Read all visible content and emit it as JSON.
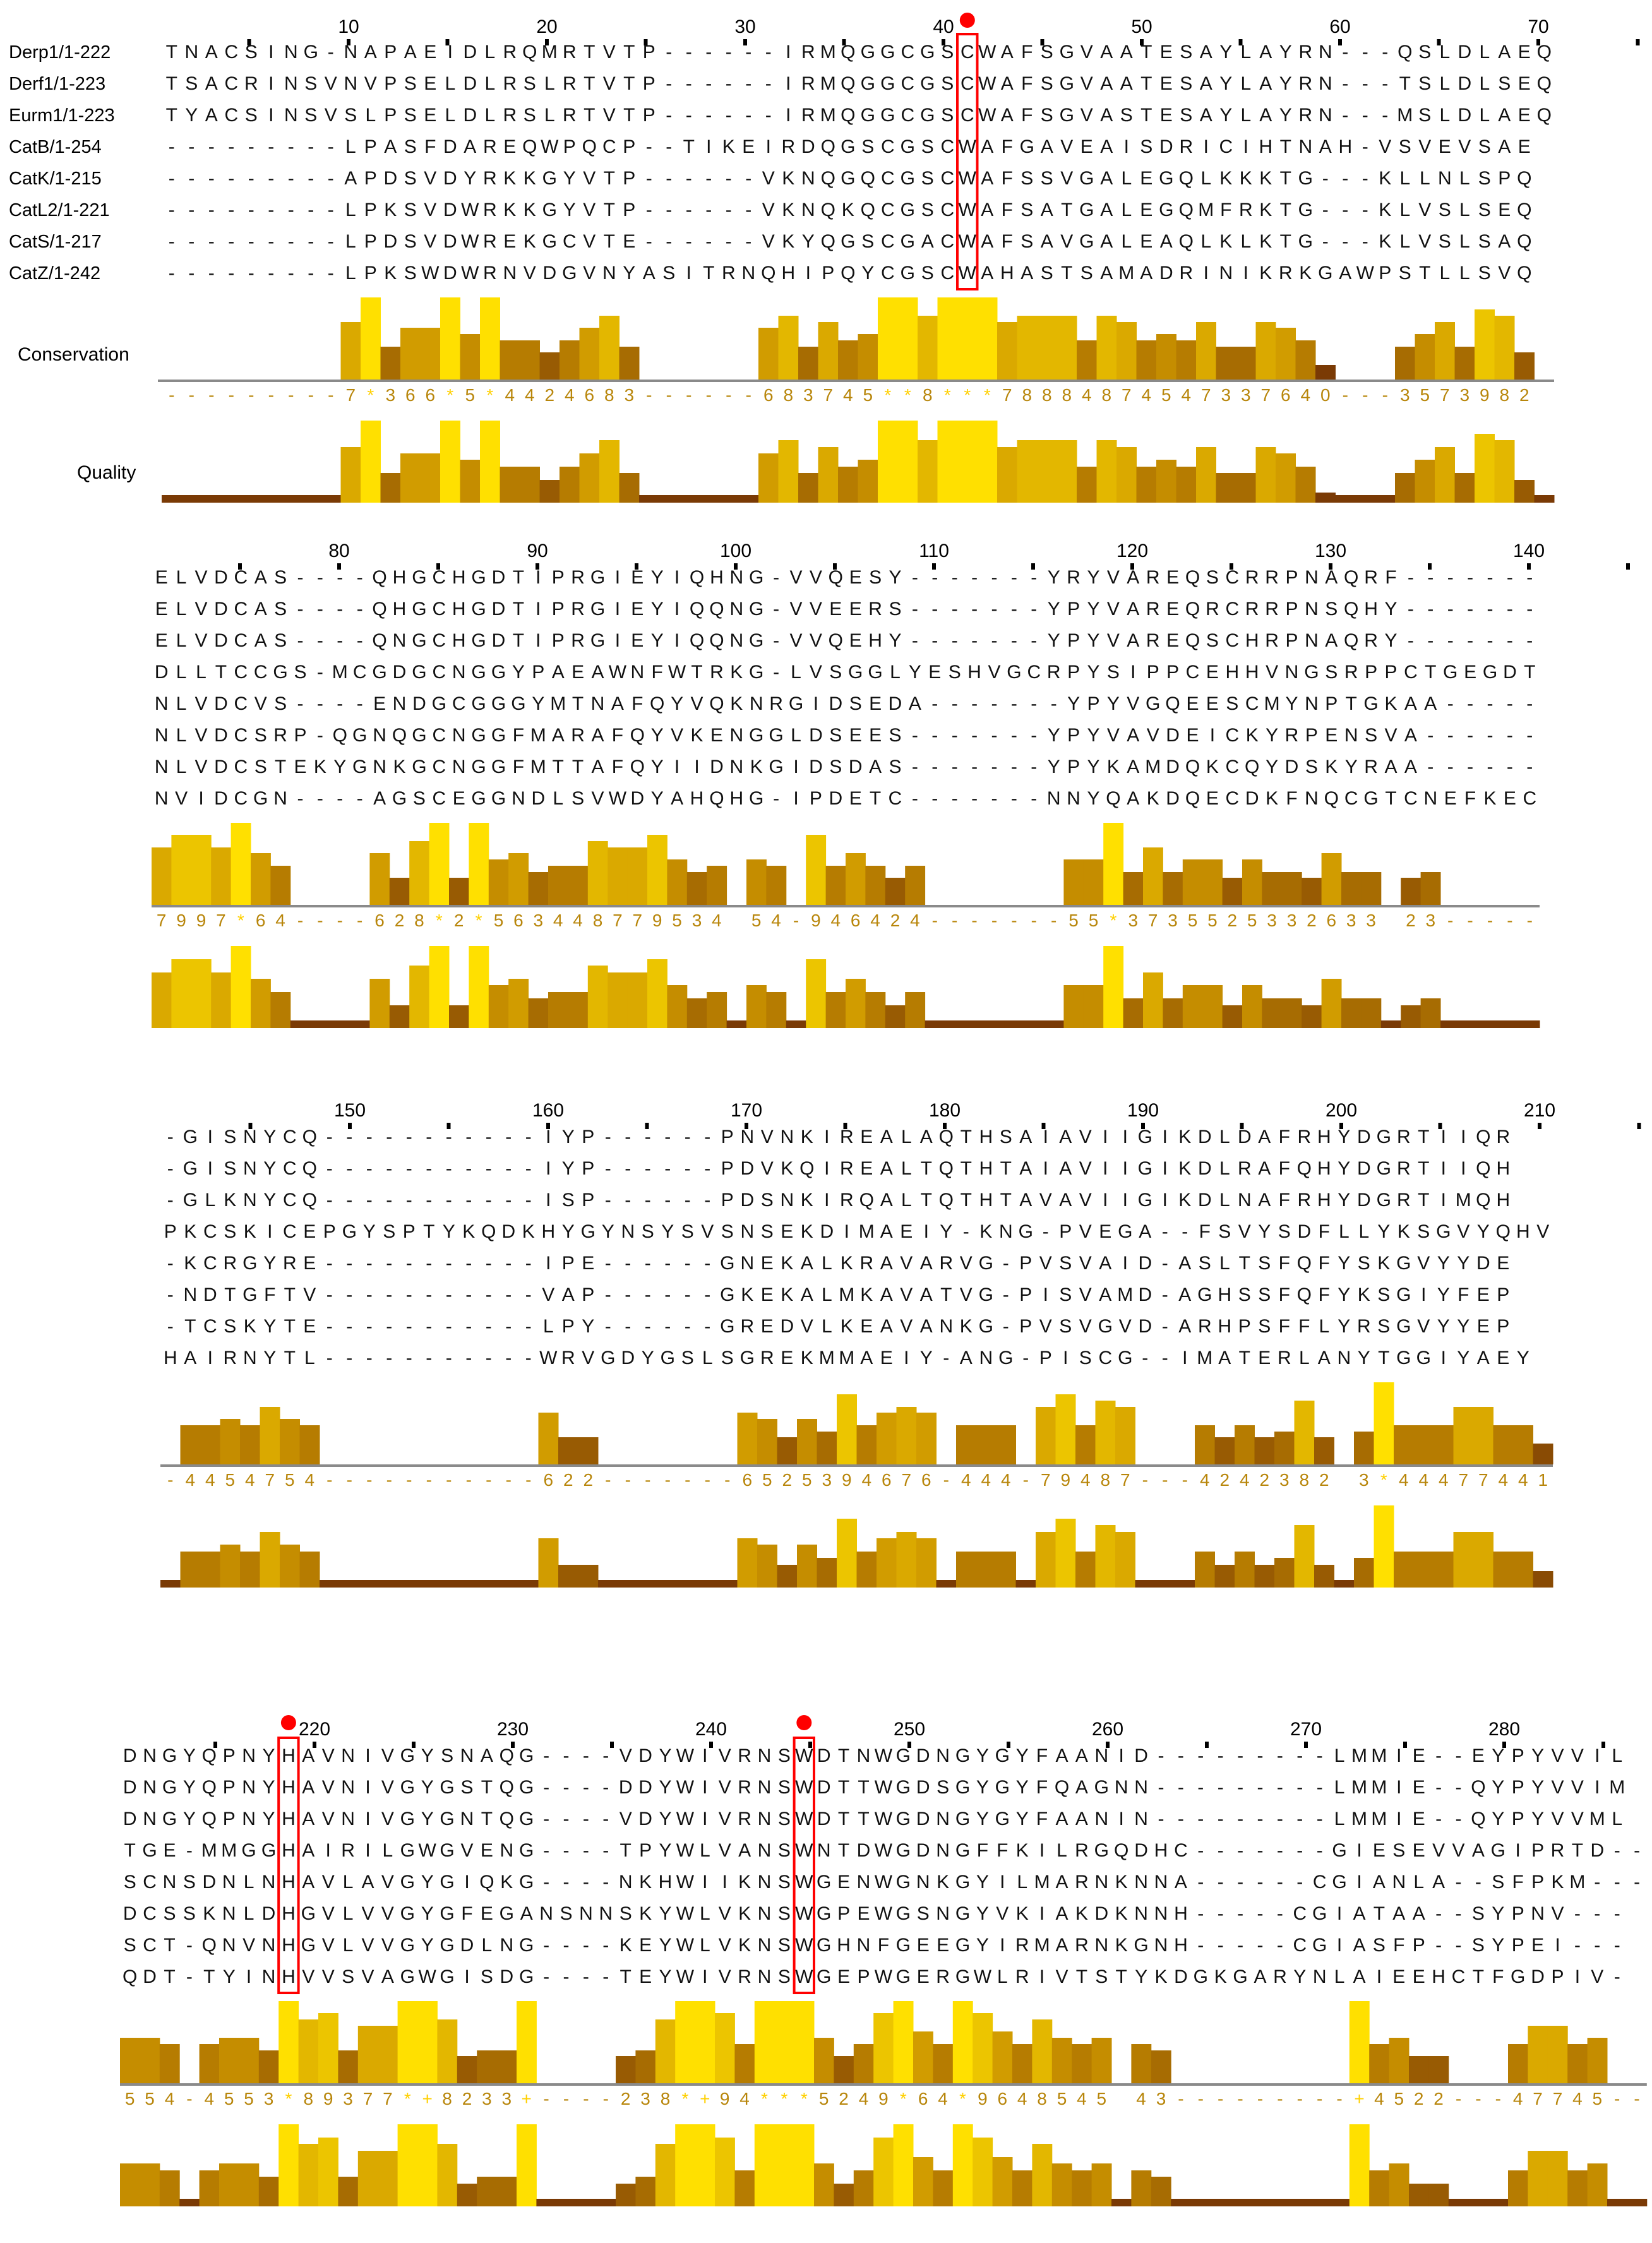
{
  "sequence_names": [
    "Derp1/1-222",
    "Derf1/1-223",
    "Eurm1/1-223",
    "CatB/1-254",
    "CatK/1-215",
    "CatL2/1-221",
    "CatS/1-217",
    "CatZ/1-242"
  ],
  "track_labels": {
    "conservation": "Conservation",
    "quality": "Quality"
  },
  "colors": {
    "identity_high": "#5c5ce6",
    "identity_mid": "#9b9bef",
    "identity_low": "#cfcff8",
    "bar_low": "#7a3a05",
    "bar_high": "#ffe000",
    "active_site": "#ff0000"
  },
  "active_site_marker": "red-dot",
  "blocks": [
    {
      "ticks": [
        "10",
        "20",
        "30",
        "40",
        "50",
        "60",
        "70"
      ],
      "rows": [
        "TNACSING-NAPAEIDLRQMRTVTP------IRMQGGCGSCWAFSGVAATESAYLAYRN---QSLDLAEQ",
        "TSACRINSVNVPSELDLRSLRTVTP------IRMQGGCGSCWAFSGVAATESAYLAYRN---TSLDLSEQ",
        "TYACSINSVSLPSELDLRSLRTVTP------IRMQGGCGSCWAFSGVASTESAYLAYRN---MSLDLAEQ",
        "---------LPASFDAREQWPQCP--TIKEIRDQGSCGSCWAFGAVEAISDRICIHTNAH-VSVEVSAE",
        "---------APDSVDYRKKGYVTP------VKNQGQCGSCWAFSSVGALEGQLKKKTG---KLLNLSPQ",
        "---------LPKSVDWRKKGYVTP------VKNQKQCGSCWAFSATGALEGQMFRKTG---KLVSLSEQ",
        "---------LPDSVDWREKGCVTE------VKYQGSCGACWAFSAVGALEAQLKLKTG---KLVSLSAQ",
        "---------LPKSWDWRNVDGVNYASITRNQHIPQYCGSCWAHASTSAMADRINIKRKGAWPSTLLSVQ"
      ],
      "conservation": "---------7*366*5*4424683------683745**8***78884874547337640---3573982 8"
    },
    {
      "ticks": [
        "80",
        "90",
        "100",
        "110",
        "120",
        "130",
        "140"
      ],
      "rows": [
        "ELVDCAS----QHGCHGDTIPRGIEYIQHNG-VVQESY-------YRYVAREQSCRRPNAQRF-------",
        "ELVDCAS----QHGCHGDTIPRGIEYIQQNG-VVEERS-------YPYVAREQRCRRPNSQHY-------",
        "ELVDCAS----QNGCHGDTIPRGIEYIQQNG-VVQEHY-------YPYVAREQSCHRPNAQRY-------",
        "DLLTCCGS-MCGDGCNGGYPAEAWNFWTRKG-LVSGGLYESHVGCRPYSIPPCEHHVNGSRPPCTGEGDT",
        "NLVDCVS----ENDGCGGGYMTNAFQYVQKNRGIDSEDA-------YPYVGQEESCMYNPTGKAA-----",
        "NLVDCSRP-QGNQGCNGGFMARAFQYVKENGGLDSEES-------YPYVAVDEICKYRPENSVA------",
        "NLVDCSTEKYGNKGCNGGFMTTAFQYIIDNKGIDSDAS-------YPYKAMDQKCQYDSKYRAA------",
        "NVIDCGN----AGSCEGGNDLSVWDYAHQHG-IPDETC-------NNYQAKDQECDKFNQCGTCNEFKEC"
      ],
      "conservation": "7997*64----628*2*563448779534 54-946424-------55*3735525332633 23-------"
    },
    {
      "ticks": [
        "150",
        "160",
        "170",
        "180",
        "190",
        "200",
        "210"
      ],
      "rows": [
        "-GISNYCQ-----------IYP------PNVNKIREALAQTHSAIAVIIGIKDLDAFRHYDGRTIIQR",
        "-GISNYCQ-----------IYP------PDVKQIREALTQTHTAIAVIIGIKDLRAFQHYDGRTIIQH",
        "-GLKNYCQ-----------ISP------PDSNKIRQALTQTHTAVAVIIGIKDLNAFRHYDGRTIMQH",
        "PKCSKICEPGYSPTYKQDKHYGYNSYSVSNSEKDIMAEIY-KNG-PVEGA--FSVYSDFLLYKSGVYQHV",
        "-KCRGYRE-----------IPE------GNEKALKRAVARVG-PVSVAID-ASLTSFQFYSKGVYYDE",
        "-NDTGFTV-----------VAP------GKEKALMKAVATVG-PISVAMD-AGHSSFQFYKSGIYFEP",
        "-TCSKYTE-----------LPY------GREDVLKEAVANKG-PVSVGVD-ARHPSFFLYRSGVYYEP",
        "HAIRNYTL-----------WRVGDYGSLSGREKMMAEIY-ANG-PISCG--IMATERLANYTGGIYAEY"
      ],
      "conservation": "-4454754-----------622-------6525394676-444-79487---4242382 3*44477441"
    },
    {
      "ticks": [
        "220",
        "230",
        "240",
        "250",
        "260",
        "270",
        "280"
      ],
      "rows": [
        "DNGYQPNYHAVNIVGYSNAQG----VDYWIVRNSWDTNWGDNGYGYFAANID---------LMMIE--EYPYVVIL",
        "DNGYQPNYHAVNIVGYGSTQG----DDYWIVRNSWDTTWGDSGYGYFQAGNN---------LMMIE--QYPYVVIM",
        "DNGYQPNYHAVNIVGYGNTQG----VDYWIVRNSWDTTWGDNGYGYFAANIN---------LMMIE--QYPYVVML",
        "TGE-MMGGHAIRILGWGVENG----TPYWLVANSWNTDWGDNGFFKILRGQDHC-------GIESEVVAGIPRTD--",
        "SCNSDNLNHAVLAVGYGIQKG----NKHWIIKNSWGENWGNKGYILMARNKNNA------CGIANLA--SFPKM---",
        "DCSSKNLDHGVLVVGYGFEGANSNNSKYWLVKNSWGPEWGSNGYVKIAKDKNNH-----CGIATAA--SYPNV---",
        "SCT-QNVNHGVLVVGYGDLNG----KEYWLVKNSWGHNFGEEGYIRMARNKGNH-----CGIASFP--SYPEI---",
        "QDT-TYINHVVSVAGWGISDG----TEYWIVRNSWGEPWGERGWLRIVTSTYKDGKGARYNLAIEEHCTFGDPIV-"
      ],
      "conservation": "554-4553*89377*+8233+----238*+94***5249*64*9648545 43---------+4522---47745--"
    }
  ]
}
